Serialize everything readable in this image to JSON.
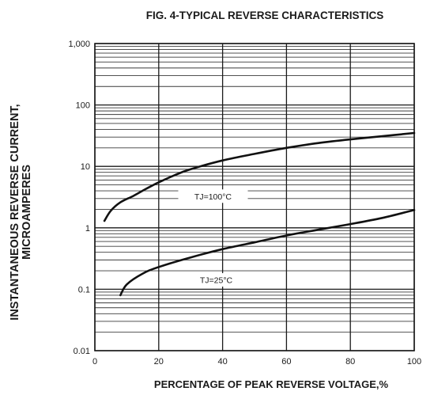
{
  "chart_data": {
    "type": "line",
    "title": "FIG. 4-TYPICAL REVERSE CHARACTERISTICS",
    "xlabel": "PERCENTAGE OF PEAK REVERSE VOLTAGE,%",
    "ylabel_lines": [
      "INSTANTANEOUS REVERSE CURRENT,",
      "MICROAMPERES"
    ],
    "x_scale": "linear",
    "y_scale": "log",
    "xlim": [
      0,
      100
    ],
    "ylim": [
      0.01,
      1000
    ],
    "x_ticks": [
      0,
      20,
      40,
      60,
      80,
      100
    ],
    "x_tick_labels": [
      "0",
      "20",
      "40",
      "60",
      "80",
      "100"
    ],
    "y_ticks": [
      0.01,
      0.1,
      1,
      10,
      100,
      1000
    ],
    "y_tick_labels": [
      "0.01",
      "0.1",
      "1",
      "10",
      "100",
      "1,000"
    ],
    "grid": true,
    "series": [
      {
        "name": "TJ=100°C",
        "x": [
          3,
          5,
          8,
          12,
          16,
          20,
          25,
          30,
          40,
          50,
          60,
          70,
          80,
          90,
          100
        ],
        "y": [
          1.3,
          1.9,
          2.6,
          3.3,
          4.3,
          5.5,
          7.2,
          9.0,
          12.5,
          16.0,
          20.0,
          24.0,
          27.5,
          31.0,
          35.0
        ]
      },
      {
        "name": "TJ=25°C",
        "x": [
          8,
          10,
          15,
          20,
          30,
          40,
          50,
          60,
          70,
          80,
          90,
          100
        ],
        "y": [
          0.08,
          0.12,
          0.18,
          0.23,
          0.33,
          0.45,
          0.58,
          0.75,
          0.93,
          1.15,
          1.45,
          1.95
        ]
      }
    ]
  }
}
